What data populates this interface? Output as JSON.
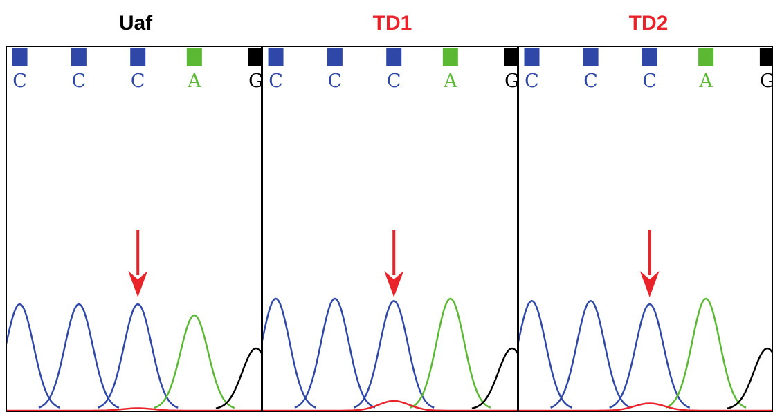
{
  "colors": {
    "C": "#2f47a6",
    "A": "#5ab833",
    "G": "#000000",
    "T": "#e8232a",
    "arrow": "#e8232a"
  },
  "bases": [
    "C",
    "C",
    "C",
    "A",
    "G"
  ],
  "panels": [
    {
      "title": "Uaf",
      "title_color": "#000000",
      "peak_heights": [
        0.95,
        0.95,
        0.95,
        0.85,
        0.55
      ],
      "red_bump": 0.05
    },
    {
      "title": "TD1",
      "title_color": "#e8232a",
      "peak_heights": [
        1.0,
        1.0,
        0.98,
        1.0,
        0.55
      ],
      "red_bump": 0.2
    },
    {
      "title": "TD2",
      "title_color": "#e8232a",
      "peak_heights": [
        0.98,
        0.98,
        0.95,
        1.0,
        0.55
      ],
      "red_bump": 0.15
    }
  ],
  "arrow_target_index": 2
}
